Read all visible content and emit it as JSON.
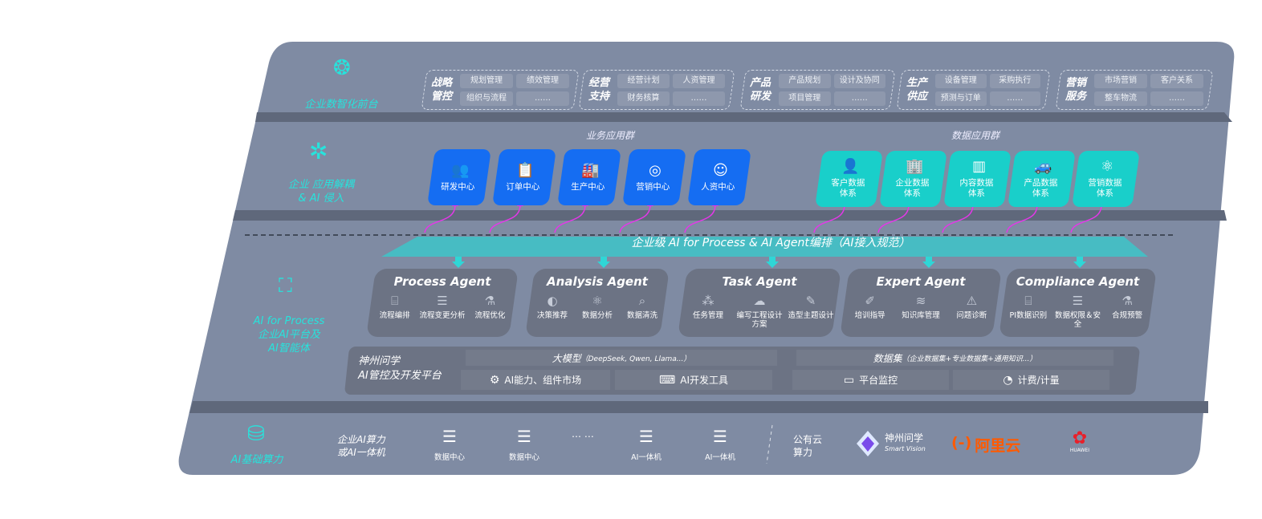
{
  "front": {
    "label": "企业数智化前台",
    "icon": "brain-icon",
    "groups": [
      {
        "title": "战略管控",
        "items": [
          "规划管理",
          "绩效管理",
          "组织与流程",
          "……"
        ]
      },
      {
        "title": "经营支持",
        "items": [
          "经营计划",
          "人资管理",
          "财务核算",
          "……"
        ]
      },
      {
        "title": "产品研发",
        "items": [
          "产品规划",
          "设计及协同",
          "项目管理",
          "……"
        ]
      },
      {
        "title": "生产供应",
        "items": [
          "设备管理",
          "采购执行",
          "预测与订单",
          "……"
        ]
      },
      {
        "title": "营销服务",
        "items": [
          "市场营销",
          "客户关系",
          "整车物流",
          "……"
        ]
      }
    ]
  },
  "apps": {
    "label_line1": "企业 应用解耦",
    "label_line2": "& AI 侵入",
    "icon": "molecule-icon",
    "business_title": "业务应用群",
    "business": [
      {
        "label": "研发中心",
        "icon": "team-icon"
      },
      {
        "label": "订单中心",
        "icon": "clipboard-icon"
      },
      {
        "label": "生产中心",
        "icon": "factory-icon"
      },
      {
        "label": "营销中心",
        "icon": "target-icon"
      },
      {
        "label": "人资中心",
        "icon": "person-icon"
      }
    ],
    "data_title": "数据应用群",
    "data": [
      {
        "label": "客户数据体系",
        "icon": "user-icon"
      },
      {
        "label": "企业数据体系",
        "icon": "building-icon"
      },
      {
        "label": "内容数据体系",
        "icon": "books-icon"
      },
      {
        "label": "产品数据体系",
        "icon": "car-icon"
      },
      {
        "label": "营销数据体系",
        "icon": "atom-icon"
      }
    ]
  },
  "orchestration": {
    "label": "企业级 AI for Process & AI Agent编排（AI接入规范）"
  },
  "ai_platform": {
    "label_line1": "AI for Process",
    "label_line2": "企业AI平台及",
    "label_line3": "AI智能体",
    "icon": "face-scan-icon",
    "agents": [
      {
        "name": "Process Agent",
        "caps": [
          "流程编排",
          "流程变更分析",
          "流程优化"
        ]
      },
      {
        "name": "Analysis Agent",
        "caps": [
          "决策推荐",
          "数据分析",
          "数据清洗"
        ]
      },
      {
        "name": "Task Agent",
        "caps": [
          "任务管理",
          "编写工程设计方案",
          "造型主题设计"
        ]
      },
      {
        "name": "Expert Agent",
        "caps": [
          "培训指导",
          "知识库管理",
          "问题诊断"
        ]
      },
      {
        "name": "Compliance Agent",
        "caps": [
          "PI数据识别",
          "数据权限＆安全",
          "合规预警"
        ]
      }
    ],
    "platform": {
      "title_line1": "神州问学",
      "title_line2": "AI管控及开发平台",
      "model": "大模型",
      "model_note": "（DeepSeek, Qwen, Llama...）",
      "dataset": "数据集",
      "dataset_note": "（企业数据集+专业数据集+通用知识...）",
      "market": "AI能力、组件市场",
      "devtools": "AI开发工具",
      "monitor": "平台监控",
      "billing": "计费/计量"
    }
  },
  "compute": {
    "label": "AI基础算力",
    "icon": "database-icon",
    "enterprise_line1": "企业AI算力",
    "enterprise_line2": "或AI一体机",
    "items": [
      "数据中心",
      "数据中心",
      "AI一体机",
      "AI一体机"
    ],
    "ellipsis": "… …",
    "public_line1": "公有云",
    "public_line2": "算力",
    "vendors": {
      "smartvision_cn": "神州问学",
      "smartvision_en": "Smart Vision",
      "aliyun": "阿里云",
      "aliyun_mark": "(-)",
      "huawei": "HUAWEI"
    }
  },
  "colors": {
    "panel": "#7f8ba3",
    "card": "#6c7384",
    "accent": "#27e3dc",
    "blue_tile": "#156df2",
    "cyan_tile": "#19cfca",
    "arrow": "#e437e8",
    "aliyun": "#ff5a00",
    "huawei": "#e8202a"
  }
}
